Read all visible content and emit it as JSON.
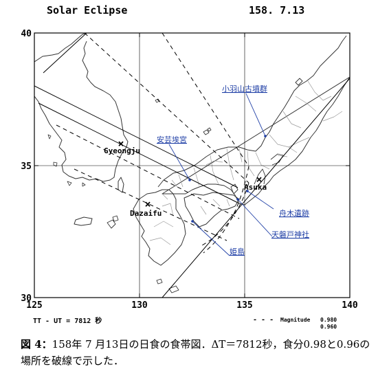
{
  "header": {
    "title": "Solar Eclipse",
    "date": "158. 7.13"
  },
  "axes": {
    "x_ticks": [
      "125",
      "130",
      "135",
      "140"
    ],
    "y_ticks": [
      "30",
      "35",
      "40"
    ],
    "lon_range": [
      125,
      140
    ],
    "lat_range": [
      30,
      40
    ]
  },
  "footer": {
    "left": "TT - UT = 7812 秒",
    "legend_dash": "- - -",
    "legend_label": "Magnitude",
    "mag1": "0.980",
    "mag2": "0.960"
  },
  "places": [
    {
      "name": "Gyeongju",
      "lon": 129.2,
      "lat": 35.8,
      "marker": "x"
    },
    {
      "name": "Dazaifu",
      "lon": 130.5,
      "lat": 33.5,
      "marker": "x"
    },
    {
      "name": "Asuka",
      "lon": 135.8,
      "lat": 34.5,
      "marker": "x"
    }
  ],
  "sites": [
    {
      "name": "小羽山古墳群",
      "lon": 136.3,
      "lat": 36.0
    },
    {
      "name": "安芸埃宮",
      "lon": 132.4,
      "lat": 34.4
    },
    {
      "name": "舟木遺跡",
      "lon": 135.0,
      "lat": 34.6
    },
    {
      "name": "天磐戸神社",
      "lon": 134.0,
      "lat": 34.0
    },
    {
      "name": "姫島",
      "lon": 131.7,
      "lat": 33.7
    }
  ],
  "caption": {
    "fig": "図 4：",
    "text": "158年 7 月13日の日食の食帯図．ΔT＝7812秒，食分0.98と0.96の場所を破線で示した．"
  },
  "colors": {
    "site": "#1f3fa6",
    "line": "#000000",
    "coast": "#333333",
    "border": "#9a9a9a"
  }
}
